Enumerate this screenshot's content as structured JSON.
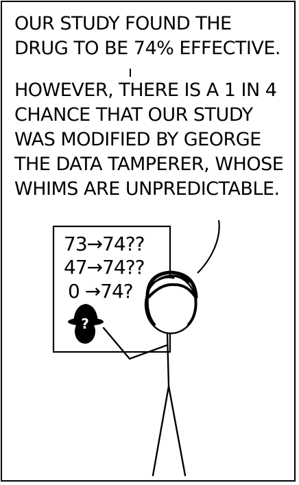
{
  "caption": {
    "line1": "OUR STUDY FOUND THE DRUG TO BE 74% EFFECTIVE.",
    "line2": "HOWEVER, THERE IS A 1 IN 4 CHANCE THAT OUR STUDY WAS MODIFIED BY GEORGE THE DATA TAMPERER, WHOSE WHIMS ARE UNPREDICTABLE."
  },
  "whiteboard": {
    "lines": [
      "73→74??",
      "47→74??",
      "0 →74?"
    ],
    "hat_mark": "?"
  }
}
